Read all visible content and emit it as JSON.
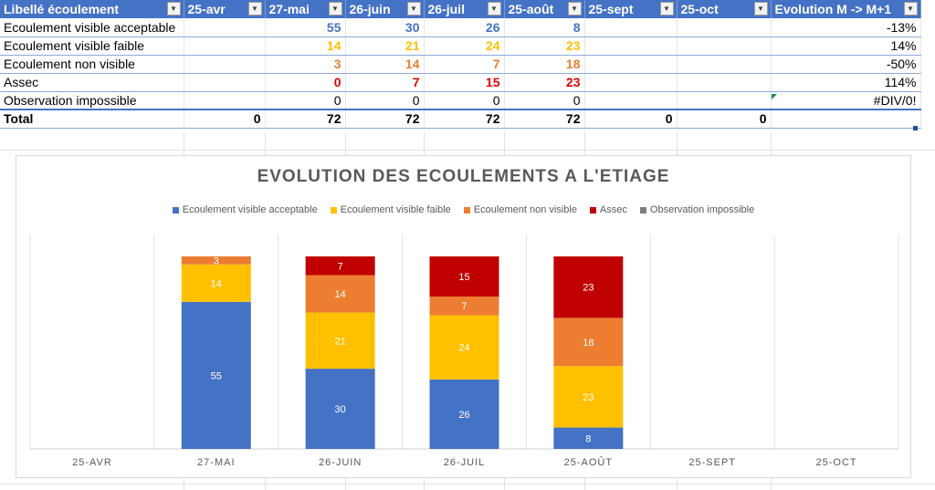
{
  "table": {
    "headers": [
      "Libellé écoulement",
      "25-avr",
      "27-mai",
      "26-juin",
      "26-juil",
      "25-août",
      "25-sept",
      "25-oct",
      "Evolution M -> M+1"
    ],
    "rows": [
      {
        "label": "Ecoulement visible acceptable",
        "values": [
          "",
          "55",
          "30",
          "26",
          "8",
          "",
          ""
        ],
        "evolution": "-13%",
        "color": "blue"
      },
      {
        "label": "Ecoulement visible faible",
        "values": [
          "",
          "14",
          "21",
          "24",
          "23",
          "",
          ""
        ],
        "evolution": "14%",
        "color": "yellow"
      },
      {
        "label": "Ecoulement non visible",
        "values": [
          "",
          "3",
          "14",
          "7",
          "18",
          "",
          ""
        ],
        "evolution": "-50%",
        "color": "orange"
      },
      {
        "label": "Assec",
        "values": [
          "",
          "0",
          "7",
          "15",
          "23",
          "",
          ""
        ],
        "evolution": "114%",
        "color": "red"
      },
      {
        "label": "Observation impossible",
        "values": [
          "",
          "0",
          "0",
          "0",
          "0",
          "",
          ""
        ],
        "evolution": "#DIV/0!",
        "color": "black"
      }
    ],
    "total": {
      "label": "Total",
      "values": [
        "0",
        "72",
        "72",
        "72",
        "72",
        "0",
        "0"
      ],
      "evolution": ""
    }
  },
  "colors": {
    "header_bg": "#4472c4",
    "acceptable": "#4472c4",
    "faible": "#ffc000",
    "non_visible": "#ed7d31",
    "assec": "#c00000",
    "impossible": "#7f7f7f"
  },
  "chart_data": {
    "type": "bar",
    "stacked": true,
    "title": "EVOLUTION DES ECOULEMENTS A L'ETIAGE",
    "categories": [
      "25-AVR",
      "27-MAI",
      "26-JUIN",
      "26-JUIL",
      "25-AOÛT",
      "25-SEPT",
      "25-OCT"
    ],
    "series": [
      {
        "name": "Ecoulement visible acceptable",
        "color": "#4472c4",
        "values": [
          0,
          55,
          30,
          26,
          8,
          0,
          0
        ]
      },
      {
        "name": "Ecoulement visible faible",
        "color": "#ffc000",
        "values": [
          0,
          14,
          21,
          24,
          23,
          0,
          0
        ]
      },
      {
        "name": "Ecoulement non visible",
        "color": "#ed7d31",
        "values": [
          0,
          3,
          14,
          7,
          18,
          0,
          0
        ]
      },
      {
        "name": "Assec",
        "color": "#c00000",
        "values": [
          0,
          0,
          7,
          15,
          23,
          0,
          0
        ]
      },
      {
        "name": "Observation impossible",
        "color": "#7f7f7f",
        "values": [
          0,
          0,
          0,
          0,
          0,
          0,
          0
        ]
      }
    ],
    "ylim": [
      0,
      72
    ],
    "legend_position": "top",
    "grid": "vertical category separators"
  }
}
